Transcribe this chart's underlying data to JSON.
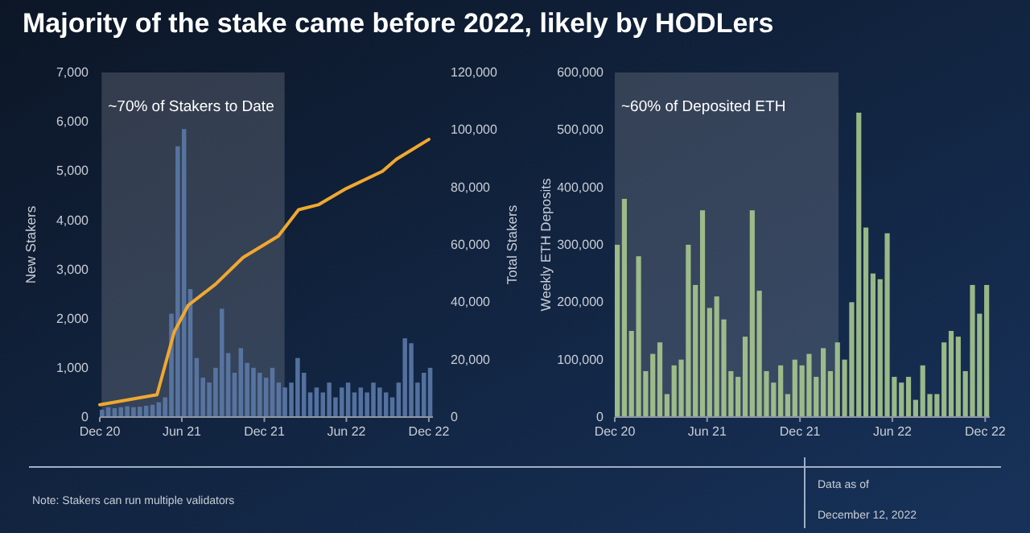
{
  "chart_data": [
    {
      "type": "bar",
      "title": "Majority of the stake came before 2022, likely by HODLers",
      "ylabel": "New Stakers",
      "y2label": "Total Stakers",
      "xlim": [
        "2020-12-01",
        "2022-12-10"
      ],
      "xticks": [
        {
          "value": "2020-12-01",
          "label": "Dec 20"
        },
        {
          "value": "2021-06-01",
          "label": "Jun 21"
        },
        {
          "value": "2021-12-01",
          "label": "Dec 21"
        },
        {
          "value": "2022-06-01",
          "label": "Jun 22"
        },
        {
          "value": "2022-12-01",
          "label": "Dec 22"
        }
      ],
      "ylim": [
        0,
        7000
      ],
      "yticks": [
        0,
        {
          "value": 1000,
          "label": "1,000"
        },
        {
          "value": 2000,
          "label": "2,000"
        },
        {
          "value": 3000,
          "label": "3,000"
        },
        {
          "value": 4000,
          "label": "4,000"
        },
        {
          "value": 5000,
          "label": "5,000"
        },
        {
          "value": 6000,
          "label": "6,000"
        },
        {
          "value": 7000,
          "label": "7,000"
        }
      ],
      "y2lim": [
        0,
        120000
      ],
      "y2ticks": [
        0,
        {
          "value": 20000,
          "label": "20,000"
        },
        {
          "value": 40000,
          "label": "40,000"
        },
        {
          "value": 60000,
          "label": "60,000"
        },
        {
          "value": 80000,
          "label": "80,000"
        },
        {
          "value": 100000,
          "label": "100,000"
        },
        {
          "value": 120000,
          "label": "120,000"
        }
      ],
      "bands": [
        {
          "axis": "x",
          "from": "2020-12-05",
          "to": "2022-01-15",
          "label": "~70% of Stakers to Date",
          "color": "#8a8f99"
        }
      ],
      "series": [
        {
          "color": "#5b7aa8",
          "x": [
            "2020-12-01",
            "2020-12-15",
            "2020-12-29",
            "2021-01-12",
            "2021-01-26",
            "2021-02-09",
            "2021-02-23",
            "2021-03-09",
            "2021-03-23",
            "2021-04-06",
            "2021-04-20",
            "2021-05-04",
            "2021-05-18",
            "2021-06-01",
            "2021-06-15",
            "2021-06-29",
            "2021-07-13",
            "2021-07-27",
            "2021-08-10",
            "2021-08-24",
            "2021-09-07",
            "2021-09-21",
            "2021-10-05",
            "2021-10-19",
            "2021-11-02",
            "2021-11-16",
            "2021-11-30",
            "2021-12-14",
            "2021-12-28",
            "2022-01-11",
            "2022-01-25",
            "2022-02-08",
            "2022-02-22",
            "2022-03-08",
            "2022-03-22",
            "2022-04-05",
            "2022-04-19",
            "2022-05-03",
            "2022-05-17",
            "2022-05-31",
            "2022-06-14",
            "2022-06-28",
            "2022-07-12",
            "2022-07-26",
            "2022-08-09",
            "2022-08-23",
            "2022-09-06",
            "2022-09-20",
            "2022-10-04",
            "2022-10-18",
            "2022-11-01",
            "2022-11-15",
            "2022-11-29"
          ],
          "values": [
            150,
            200,
            180,
            200,
            220,
            200,
            210,
            230,
            250,
            300,
            400,
            2100,
            5500,
            5850,
            2600,
            1200,
            800,
            700,
            1000,
            2200,
            1300,
            900,
            1400,
            1100,
            1000,
            900,
            800,
            1000,
            700,
            600,
            700,
            1200,
            900,
            500,
            600,
            500,
            700,
            400,
            600,
            700,
            500,
            600,
            500,
            700,
            600,
            500,
            400,
            700,
            1600,
            1500,
            700,
            900,
            1000
          ]
        },
        {
          "type": "line",
          "axis": "y2",
          "color": "#f0a830",
          "x": [
            "2020-12-01",
            "2021-04-07",
            "2021-05-15",
            "2021-06-15",
            "2021-08-15",
            "2021-10-15",
            "2022-01-01",
            "2022-02-15",
            "2022-04-01",
            "2022-06-01",
            "2022-08-20",
            "2022-09-20",
            "2022-12-01"
          ],
          "values": [
            4300,
            7800,
            29600,
            38900,
            46300,
            55600,
            63000,
            72200,
            74000,
            79600,
            85600,
            89800,
            96700
          ]
        }
      ]
    },
    {
      "type": "bar",
      "ylabel": "Weekly ETH Deposits",
      "xlim": [
        "2020-12-01",
        "2022-12-10"
      ],
      "xticks": [
        {
          "value": "2020-12-01",
          "label": "Dec 20"
        },
        {
          "value": "2021-06-01",
          "label": "Jun 21"
        },
        {
          "value": "2021-12-01",
          "label": "Dec 21"
        },
        {
          "value": "2022-06-01",
          "label": "Jun 22"
        },
        {
          "value": "2022-12-01",
          "label": "Dec 22"
        }
      ],
      "ylim": [
        0,
        600000
      ],
      "yticks": [
        0,
        {
          "value": 100000,
          "label": "100,000"
        },
        {
          "value": 200000,
          "label": "200,000"
        },
        {
          "value": 300000,
          "label": "300,000"
        },
        {
          "value": 400000,
          "label": "400,000"
        },
        {
          "value": 500000,
          "label": "500,000"
        },
        {
          "value": 600000,
          "label": "600,000"
        }
      ],
      "bands": [
        {
          "axis": "x",
          "from": "2020-12-01",
          "to": "2022-02-15",
          "label": "~60% of Deposited ETH",
          "color": "#8a8f99"
        }
      ],
      "annotations": [
        "Note: Stakers can run multiple validators",
        "Data as of",
        "December 12, 2022"
      ],
      "series": [
        {
          "color": "#a9c88e",
          "x": [
            "2020-12-01",
            "2020-12-15",
            "2020-12-29",
            "2021-01-12",
            "2021-01-26",
            "2021-02-09",
            "2021-02-23",
            "2021-03-09",
            "2021-03-23",
            "2021-04-06",
            "2021-04-20",
            "2021-05-04",
            "2021-05-18",
            "2021-06-01",
            "2021-06-15",
            "2021-06-29",
            "2021-07-13",
            "2021-07-27",
            "2021-08-10",
            "2021-08-24",
            "2021-09-07",
            "2021-09-21",
            "2021-10-05",
            "2021-10-19",
            "2021-11-02",
            "2021-11-16",
            "2021-11-30",
            "2021-12-14",
            "2021-12-28",
            "2022-01-11",
            "2022-01-25",
            "2022-02-08",
            "2022-02-22",
            "2022-03-08",
            "2022-03-22",
            "2022-04-05",
            "2022-04-19",
            "2022-05-03",
            "2022-05-17",
            "2022-05-31",
            "2022-06-14",
            "2022-06-28",
            "2022-07-12",
            "2022-07-26",
            "2022-08-09",
            "2022-08-23",
            "2022-09-06",
            "2022-09-20",
            "2022-10-04",
            "2022-10-18",
            "2022-11-01",
            "2022-11-15",
            "2022-11-29"
          ],
          "values": [
            300000,
            380000,
            150000,
            280000,
            80000,
            110000,
            130000,
            40000,
            90000,
            100000,
            300000,
            230000,
            360000,
            190000,
            210000,
            170000,
            80000,
            70000,
            140000,
            360000,
            220000,
            80000,
            60000,
            90000,
            40000,
            100000,
            90000,
            110000,
            70000,
            120000,
            80000,
            130000,
            100000,
            200000,
            530000,
            330000,
            250000,
            240000,
            320000,
            70000,
            60000,
            70000,
            30000,
            90000,
            40000,
            40000,
            130000,
            150000,
            140000,
            80000,
            230000,
            180000,
            230000
          ]
        }
      ]
    }
  ]
}
